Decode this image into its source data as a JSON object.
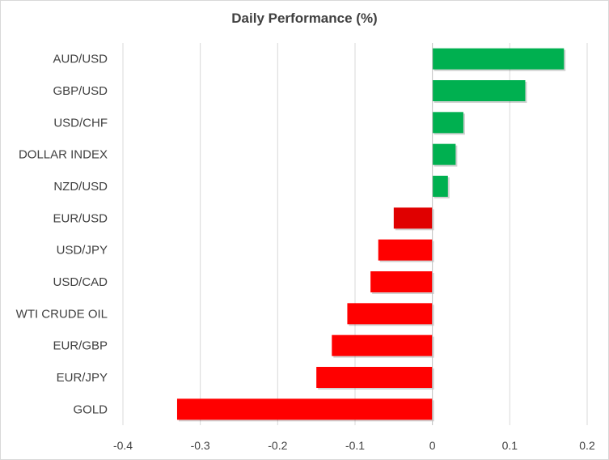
{
  "chart_data": {
    "type": "bar",
    "orientation": "horizontal",
    "title": "Daily Performance  (%)",
    "xlabel": "",
    "ylabel": "",
    "xlim": [
      -0.4,
      0.2
    ],
    "x_ticks": [
      -0.4,
      -0.3,
      -0.2,
      -0.1,
      0,
      0.1,
      0.2
    ],
    "x_tick_labels": [
      "-0.4",
      "-0.3",
      "-0.2",
      "-0.1",
      "0",
      "0.1",
      "0.2"
    ],
    "grid": "vertical",
    "legend": "none",
    "categories": [
      "AUD/USD",
      "GBP/USD",
      "USD/CHF",
      "DOLLAR INDEX",
      "NZD/USD",
      "EUR/USD",
      "USD/JPY",
      "USD/CAD",
      "WTI CRUDE OIL",
      "EUR/GBP",
      "EUR/JPY",
      "GOLD"
    ],
    "values": [
      0.17,
      0.12,
      0.04,
      0.03,
      0.02,
      -0.05,
      -0.07,
      -0.08,
      -0.11,
      -0.13,
      -0.15,
      -0.33
    ],
    "colors": {
      "positive": "#00b050",
      "negative": "#ff0000",
      "highlight": "#e00000",
      "grid": "#d9d9d9",
      "axis": "#bfbfbf",
      "text": "#404040"
    },
    "highlight_category": "EUR/USD"
  }
}
